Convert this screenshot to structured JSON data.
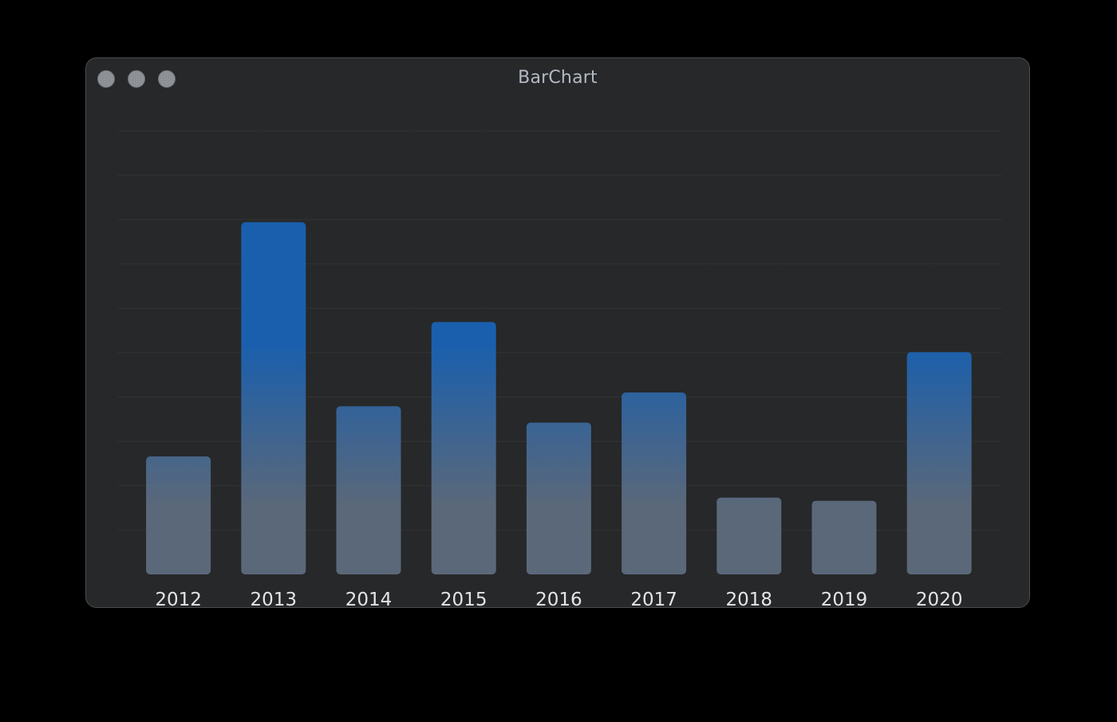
{
  "window": {
    "title": "BarChart"
  },
  "colors": {
    "background": "#000000",
    "window": "#262829",
    "bar_top": "#1a5fad",
    "bar_bottom": "#5b6879",
    "gridline": "#3c3e40",
    "tick_text": "#e3e5e8"
  },
  "chart_data": {
    "type": "bar",
    "categories": [
      "2012",
      "2013",
      "2014",
      "2015",
      "2016",
      "2017",
      "2018",
      "2019",
      "2020"
    ],
    "values": [
      2.66,
      7.94,
      3.79,
      5.69,
      3.42,
      4.1,
      1.73,
      1.66,
      5.01
    ],
    "ylim": [
      0,
      10
    ],
    "grid": true,
    "legend": "none"
  }
}
